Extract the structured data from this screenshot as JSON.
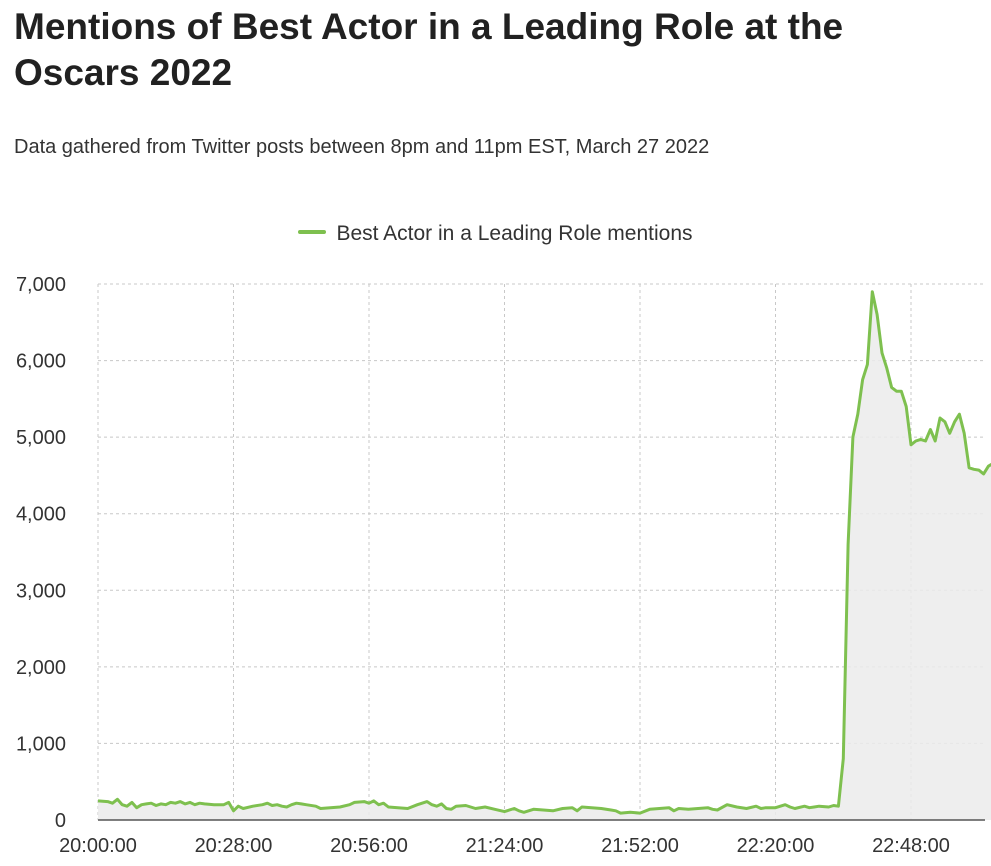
{
  "colors": {
    "line": "#7ec04f",
    "area": "#ebebeb",
    "grid": "#c8c8c8"
  },
  "chart_data": {
    "type": "area",
    "title": "Mentions of Best Actor in a Leading Role at the Oscars 2022",
    "subtitle": "Data gathered from Twitter posts between 8pm and 11pm EST, March 27 2022",
    "xlabel": "",
    "ylabel": "",
    "ylim": [
      0,
      7000
    ],
    "grid": true,
    "legend_position": "top-center",
    "y_ticks": [
      "0",
      "1,000",
      "2,000",
      "3,000",
      "4,000",
      "5,000",
      "6,000",
      "7,000"
    ],
    "x_ticks": [
      "20:00:00",
      "20:28:00",
      "20:56:00",
      "21:24:00",
      "21:52:00",
      "22:20:00",
      "22:48:00"
    ],
    "x_tick_minutes": [
      0,
      28,
      56,
      84,
      112,
      140,
      168
    ],
    "series": [
      {
        "name": "Best Actor in a Leading Role mentions",
        "points": [
          [
            0,
            250
          ],
          [
            2,
            240
          ],
          [
            3,
            220
          ],
          [
            4,
            270
          ],
          [
            5,
            200
          ],
          [
            6,
            180
          ],
          [
            7,
            230
          ],
          [
            8,
            160
          ],
          [
            9,
            200
          ],
          [
            10,
            210
          ],
          [
            11,
            220
          ],
          [
            12,
            190
          ],
          [
            13,
            210
          ],
          [
            14,
            200
          ],
          [
            15,
            230
          ],
          [
            16,
            220
          ],
          [
            17,
            240
          ],
          [
            18,
            210
          ],
          [
            19,
            230
          ],
          [
            20,
            200
          ],
          [
            21,
            220
          ],
          [
            22,
            210
          ],
          [
            24,
            200
          ],
          [
            26,
            200
          ],
          [
            27,
            230
          ],
          [
            28,
            120
          ],
          [
            29,
            180
          ],
          [
            30,
            150
          ],
          [
            32,
            180
          ],
          [
            34,
            200
          ],
          [
            35,
            220
          ],
          [
            36,
            190
          ],
          [
            37,
            200
          ],
          [
            38,
            180
          ],
          [
            39,
            170
          ],
          [
            40,
            200
          ],
          [
            41,
            220
          ],
          [
            42,
            210
          ],
          [
            43,
            200
          ],
          [
            45,
            180
          ],
          [
            46,
            150
          ],
          [
            48,
            160
          ],
          [
            50,
            170
          ],
          [
            52,
            200
          ],
          [
            53,
            230
          ],
          [
            55,
            240
          ],
          [
            56,
            220
          ],
          [
            57,
            250
          ],
          [
            58,
            200
          ],
          [
            59,
            220
          ],
          [
            60,
            170
          ],
          [
            62,
            160
          ],
          [
            64,
            150
          ],
          [
            66,
            200
          ],
          [
            68,
            240
          ],
          [
            69,
            200
          ],
          [
            70,
            180
          ],
          [
            71,
            210
          ],
          [
            72,
            150
          ],
          [
            73,
            140
          ],
          [
            74,
            180
          ],
          [
            76,
            190
          ],
          [
            78,
            150
          ],
          [
            80,
            170
          ],
          [
            82,
            140
          ],
          [
            84,
            110
          ],
          [
            86,
            150
          ],
          [
            87,
            120
          ],
          [
            88,
            100
          ],
          [
            90,
            140
          ],
          [
            92,
            130
          ],
          [
            94,
            120
          ],
          [
            96,
            150
          ],
          [
            98,
            160
          ],
          [
            99,
            120
          ],
          [
            100,
            170
          ],
          [
            102,
            160
          ],
          [
            104,
            150
          ],
          [
            106,
            130
          ],
          [
            107,
            120
          ],
          [
            108,
            90
          ],
          [
            110,
            100
          ],
          [
            112,
            90
          ],
          [
            114,
            140
          ],
          [
            116,
            150
          ],
          [
            118,
            160
          ],
          [
            119,
            120
          ],
          [
            120,
            150
          ],
          [
            122,
            140
          ],
          [
            124,
            150
          ],
          [
            126,
            160
          ],
          [
            127,
            140
          ],
          [
            128,
            130
          ],
          [
            130,
            200
          ],
          [
            132,
            170
          ],
          [
            134,
            150
          ],
          [
            136,
            180
          ],
          [
            137,
            150
          ],
          [
            138,
            160
          ],
          [
            140,
            160
          ],
          [
            142,
            200
          ],
          [
            143,
            170
          ],
          [
            144,
            150
          ],
          [
            146,
            180
          ],
          [
            147,
            160
          ],
          [
            148,
            170
          ],
          [
            149,
            180
          ],
          [
            150,
            175
          ],
          [
            151,
            170
          ],
          [
            152,
            190
          ],
          [
            153,
            180
          ],
          [
            154,
            800
          ],
          [
            155,
            3600
          ],
          [
            156,
            5000
          ],
          [
            157,
            5300
          ],
          [
            158,
            5750
          ],
          [
            159,
            5950
          ],
          [
            160,
            6900
          ],
          [
            161,
            6600
          ],
          [
            162,
            6100
          ],
          [
            163,
            5900
          ],
          [
            164,
            5650
          ],
          [
            165,
            5600
          ],
          [
            166,
            5600
          ],
          [
            167,
            5400
          ],
          [
            168,
            4900
          ],
          [
            169,
            4950
          ],
          [
            170,
            4970
          ],
          [
            171,
            4950
          ],
          [
            172,
            5100
          ],
          [
            173,
            4950
          ],
          [
            174,
            5250
          ],
          [
            175,
            5200
          ],
          [
            176,
            5050
          ],
          [
            177,
            5200
          ],
          [
            178,
            5300
          ],
          [
            179,
            5050
          ],
          [
            180,
            4600
          ],
          [
            181,
            4580
          ],
          [
            182,
            4570
          ],
          [
            183,
            4520
          ],
          [
            184,
            4620
          ],
          [
            185,
            4660
          ],
          [
            186,
            4630
          ]
        ]
      }
    ]
  }
}
